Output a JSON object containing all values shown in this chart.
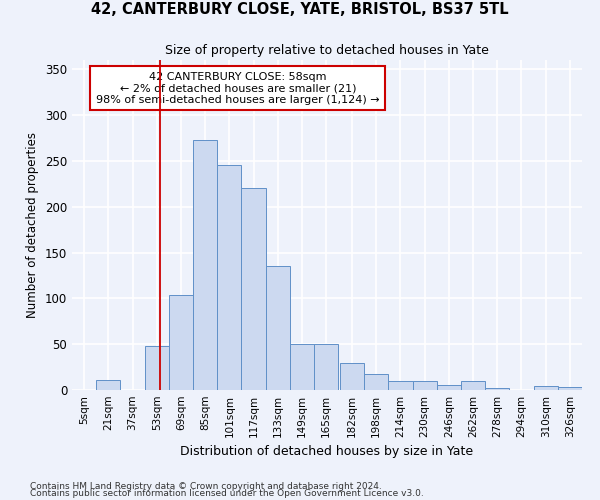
{
  "title": "42, CANTERBURY CLOSE, YATE, BRISTOL, BS37 5TL",
  "subtitle": "Size of property relative to detached houses in Yate",
  "xlabel": "Distribution of detached houses by size in Yate",
  "ylabel": "Number of detached properties",
  "bin_labels": [
    "5sqm",
    "21sqm",
    "37sqm",
    "53sqm",
    "69sqm",
    "85sqm",
    "101sqm",
    "117sqm",
    "133sqm",
    "149sqm",
    "165sqm",
    "182sqm",
    "198sqm",
    "214sqm",
    "230sqm",
    "246sqm",
    "262sqm",
    "278sqm",
    "294sqm",
    "310sqm",
    "326sqm"
  ],
  "bar_heights": [
    0,
    11,
    0,
    48,
    104,
    273,
    245,
    220,
    135,
    50,
    50,
    30,
    17,
    10,
    10,
    5,
    10,
    2,
    0,
    4,
    3
  ],
  "bar_color": "#ccd9f0",
  "bar_edge_color": "#6090c8",
  "property_line_x": 63,
  "property_line_label": "42 CANTERBURY CLOSE: 58sqm",
  "annotation_line1": "← 2% of detached houses are smaller (21)",
  "annotation_line2": "98% of semi-detached houses are larger (1,124) →",
  "vline_color": "#cc0000",
  "annotation_box_edge_color": "#cc0000",
  "ylim": [
    0,
    360
  ],
  "yticks": [
    0,
    50,
    100,
    150,
    200,
    250,
    300,
    350
  ],
  "footer_line1": "Contains HM Land Registry data © Crown copyright and database right 2024.",
  "footer_line2": "Contains public sector information licensed under the Open Government Licence v3.0.",
  "bg_color": "#eef2fb",
  "grid_color": "#ffffff"
}
